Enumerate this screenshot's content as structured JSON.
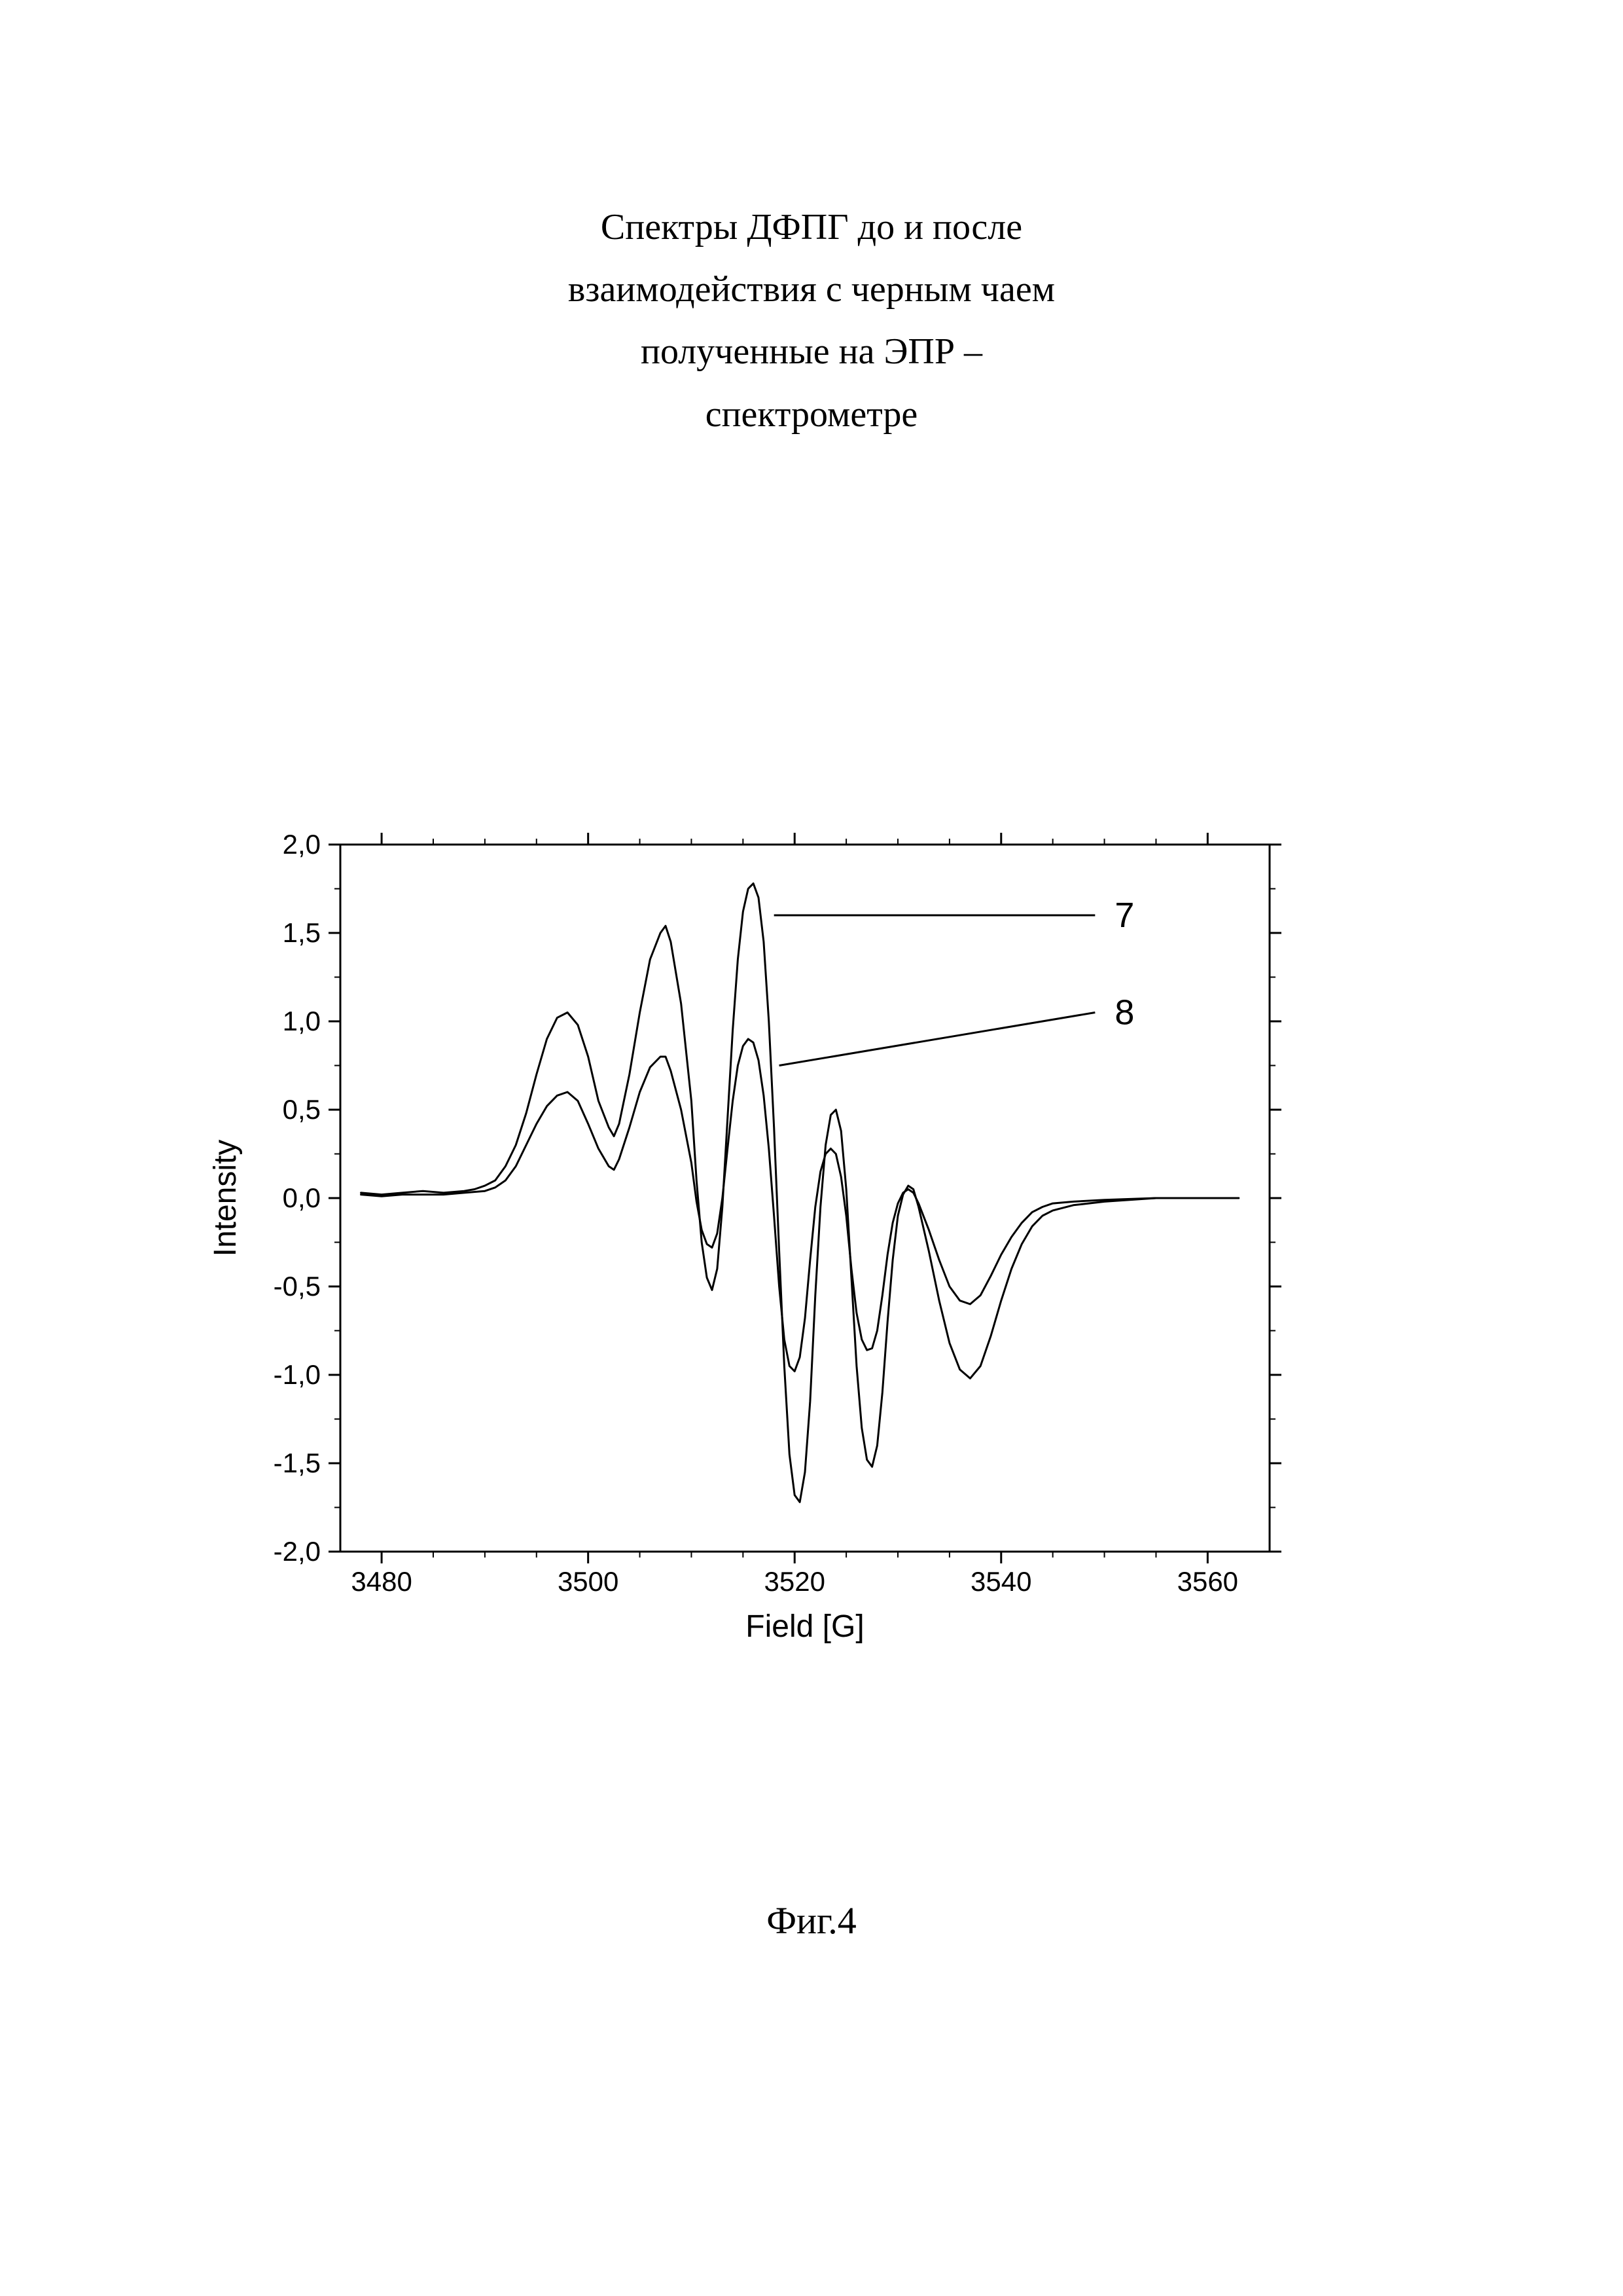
{
  "title_lines": [
    "Спектры ДФПГ до и после",
    "взаимодействия с черным чаем",
    "полученные на ЭПР –",
    "спектрометре"
  ],
  "caption": "Фиг.4",
  "chart": {
    "type": "line",
    "xlabel": "Field [G]",
    "ylabel": "Intensity",
    "xlim": [
      3476,
      3566
    ],
    "ylim": [
      -2.0,
      2.0
    ],
    "xticks": [
      3480,
      3500,
      3520,
      3540,
      3560
    ],
    "yticks": [
      -2.0,
      -1.5,
      -1.0,
      -0.5,
      0.0,
      0.5,
      1.0,
      1.5,
      2.0
    ],
    "ytick_labels": [
      "-2,0",
      "-1,5",
      "-1,0",
      "-0,5",
      "0,0",
      "0,5",
      "1,0",
      "1,5",
      "2,0"
    ],
    "minor_tick_x_step": 10,
    "minor_tick_y_step": 0.5,
    "line_width": 3,
    "background_color": "#ffffff",
    "axis_color": "#000000",
    "text_color": "#000000",
    "label_fontsize": 48,
    "tick_fontsize": 42,
    "series": [
      {
        "name": "7",
        "color": "#000000",
        "callout": {
          "label": "7",
          "anchor_x": 3518,
          "anchor_y": 1.6,
          "label_x": 3551,
          "label_y": 1.6
        },
        "points": [
          [
            3478,
            0.03
          ],
          [
            3480,
            0.02
          ],
          [
            3482,
            0.03
          ],
          [
            3484,
            0.04
          ],
          [
            3486,
            0.03
          ],
          [
            3488,
            0.04
          ],
          [
            3489,
            0.05
          ],
          [
            3490,
            0.07
          ],
          [
            3491,
            0.1
          ],
          [
            3492,
            0.18
          ],
          [
            3493,
            0.3
          ],
          [
            3494,
            0.48
          ],
          [
            3495,
            0.7
          ],
          [
            3496,
            0.9
          ],
          [
            3497,
            1.02
          ],
          [
            3498,
            1.05
          ],
          [
            3499,
            0.98
          ],
          [
            3500,
            0.8
          ],
          [
            3501,
            0.55
          ],
          [
            3502,
            0.4
          ],
          [
            3502.5,
            0.35
          ],
          [
            3503,
            0.42
          ],
          [
            3504,
            0.7
          ],
          [
            3505,
            1.05
          ],
          [
            3506,
            1.35
          ],
          [
            3507,
            1.5
          ],
          [
            3507.5,
            1.54
          ],
          [
            3508,
            1.45
          ],
          [
            3509,
            1.1
          ],
          [
            3510,
            0.55
          ],
          [
            3510.5,
            0.1
          ],
          [
            3511,
            -0.25
          ],
          [
            3511.5,
            -0.45
          ],
          [
            3512,
            -0.52
          ],
          [
            3512.5,
            -0.4
          ],
          [
            3513,
            -0.05
          ],
          [
            3513.5,
            0.45
          ],
          [
            3514,
            0.95
          ],
          [
            3514.5,
            1.35
          ],
          [
            3515,
            1.62
          ],
          [
            3515.5,
            1.75
          ],
          [
            3516,
            1.78
          ],
          [
            3516.5,
            1.7
          ],
          [
            3517,
            1.45
          ],
          [
            3517.5,
            1.0
          ],
          [
            3518,
            0.4
          ],
          [
            3518.5,
            -0.3
          ],
          [
            3519,
            -0.95
          ],
          [
            3519.5,
            -1.45
          ],
          [
            3520,
            -1.68
          ],
          [
            3520.5,
            -1.72
          ],
          [
            3521,
            -1.55
          ],
          [
            3521.5,
            -1.15
          ],
          [
            3522,
            -0.55
          ],
          [
            3522.5,
            -0.05
          ],
          [
            3523,
            0.3
          ],
          [
            3523.5,
            0.47
          ],
          [
            3524,
            0.5
          ],
          [
            3524.5,
            0.38
          ],
          [
            3525,
            0.05
          ],
          [
            3525.5,
            -0.45
          ],
          [
            3526,
            -0.95
          ],
          [
            3526.5,
            -1.3
          ],
          [
            3527,
            -1.48
          ],
          [
            3527.5,
            -1.52
          ],
          [
            3528,
            -1.4
          ],
          [
            3528.5,
            -1.1
          ],
          [
            3529,
            -0.7
          ],
          [
            3529.5,
            -0.35
          ],
          [
            3530,
            -0.1
          ],
          [
            3530.5,
            0.02
          ],
          [
            3531,
            0.07
          ],
          [
            3531.5,
            0.05
          ],
          [
            3532,
            -0.05
          ],
          [
            3533,
            -0.3
          ],
          [
            3534,
            -0.58
          ],
          [
            3535,
            -0.82
          ],
          [
            3536,
            -0.97
          ],
          [
            3537,
            -1.02
          ],
          [
            3538,
            -0.95
          ],
          [
            3539,
            -0.78
          ],
          [
            3540,
            -0.58
          ],
          [
            3541,
            -0.4
          ],
          [
            3542,
            -0.26
          ],
          [
            3543,
            -0.16
          ],
          [
            3544,
            -0.1
          ],
          [
            3545,
            -0.07
          ],
          [
            3547,
            -0.04
          ],
          [
            3550,
            -0.02
          ],
          [
            3555,
            0.0
          ],
          [
            3560,
            0.0
          ],
          [
            3563,
            0.0
          ]
        ]
      },
      {
        "name": "8",
        "color": "#000000",
        "callout": {
          "label": "8",
          "anchor_x": 3518.5,
          "anchor_y": 0.75,
          "label_x": 3551,
          "label_y": 1.05
        },
        "points": [
          [
            3478,
            0.02
          ],
          [
            3480,
            0.01
          ],
          [
            3482,
            0.02
          ],
          [
            3484,
            0.02
          ],
          [
            3486,
            0.02
          ],
          [
            3488,
            0.03
          ],
          [
            3490,
            0.04
          ],
          [
            3491,
            0.06
          ],
          [
            3492,
            0.1
          ],
          [
            3493,
            0.18
          ],
          [
            3494,
            0.3
          ],
          [
            3495,
            0.42
          ],
          [
            3496,
            0.52
          ],
          [
            3497,
            0.58
          ],
          [
            3498,
            0.6
          ],
          [
            3499,
            0.55
          ],
          [
            3500,
            0.42
          ],
          [
            3501,
            0.28
          ],
          [
            3502,
            0.18
          ],
          [
            3502.5,
            0.16
          ],
          [
            3503,
            0.22
          ],
          [
            3504,
            0.4
          ],
          [
            3505,
            0.6
          ],
          [
            3506,
            0.74
          ],
          [
            3507,
            0.8
          ],
          [
            3507.5,
            0.8
          ],
          [
            3508,
            0.72
          ],
          [
            3509,
            0.5
          ],
          [
            3510,
            0.2
          ],
          [
            3510.5,
            -0.02
          ],
          [
            3511,
            -0.18
          ],
          [
            3511.5,
            -0.26
          ],
          [
            3512,
            -0.28
          ],
          [
            3512.5,
            -0.2
          ],
          [
            3513,
            0.0
          ],
          [
            3513.5,
            0.28
          ],
          [
            3514,
            0.55
          ],
          [
            3514.5,
            0.75
          ],
          [
            3515,
            0.86
          ],
          [
            3515.5,
            0.9
          ],
          [
            3516,
            0.88
          ],
          [
            3516.5,
            0.78
          ],
          [
            3517,
            0.58
          ],
          [
            3517.5,
            0.28
          ],
          [
            3518,
            -0.1
          ],
          [
            3518.5,
            -0.5
          ],
          [
            3519,
            -0.8
          ],
          [
            3519.5,
            -0.95
          ],
          [
            3520,
            -0.98
          ],
          [
            3520.5,
            -0.9
          ],
          [
            3521,
            -0.68
          ],
          [
            3521.5,
            -0.35
          ],
          [
            3522,
            -0.05
          ],
          [
            3522.5,
            0.15
          ],
          [
            3523,
            0.25
          ],
          [
            3523.5,
            0.28
          ],
          [
            3524,
            0.25
          ],
          [
            3524.5,
            0.12
          ],
          [
            3525,
            -0.1
          ],
          [
            3525.5,
            -0.4
          ],
          [
            3526,
            -0.65
          ],
          [
            3526.5,
            -0.8
          ],
          [
            3527,
            -0.86
          ],
          [
            3527.5,
            -0.85
          ],
          [
            3528,
            -0.75
          ],
          [
            3528.5,
            -0.55
          ],
          [
            3529,
            -0.32
          ],
          [
            3529.5,
            -0.14
          ],
          [
            3530,
            -0.03
          ],
          [
            3530.5,
            0.03
          ],
          [
            3531,
            0.05
          ],
          [
            3531.5,
            0.03
          ],
          [
            3532,
            -0.03
          ],
          [
            3533,
            -0.18
          ],
          [
            3534,
            -0.35
          ],
          [
            3535,
            -0.5
          ],
          [
            3536,
            -0.58
          ],
          [
            3537,
            -0.6
          ],
          [
            3538,
            -0.55
          ],
          [
            3539,
            -0.44
          ],
          [
            3540,
            -0.32
          ],
          [
            3541,
            -0.22
          ],
          [
            3542,
            -0.14
          ],
          [
            3543,
            -0.08
          ],
          [
            3544,
            -0.05
          ],
          [
            3545,
            -0.03
          ],
          [
            3547,
            -0.02
          ],
          [
            3550,
            -0.01
          ],
          [
            3555,
            0.0
          ],
          [
            3560,
            0.0
          ],
          [
            3563,
            0.0
          ]
        ]
      }
    ]
  }
}
